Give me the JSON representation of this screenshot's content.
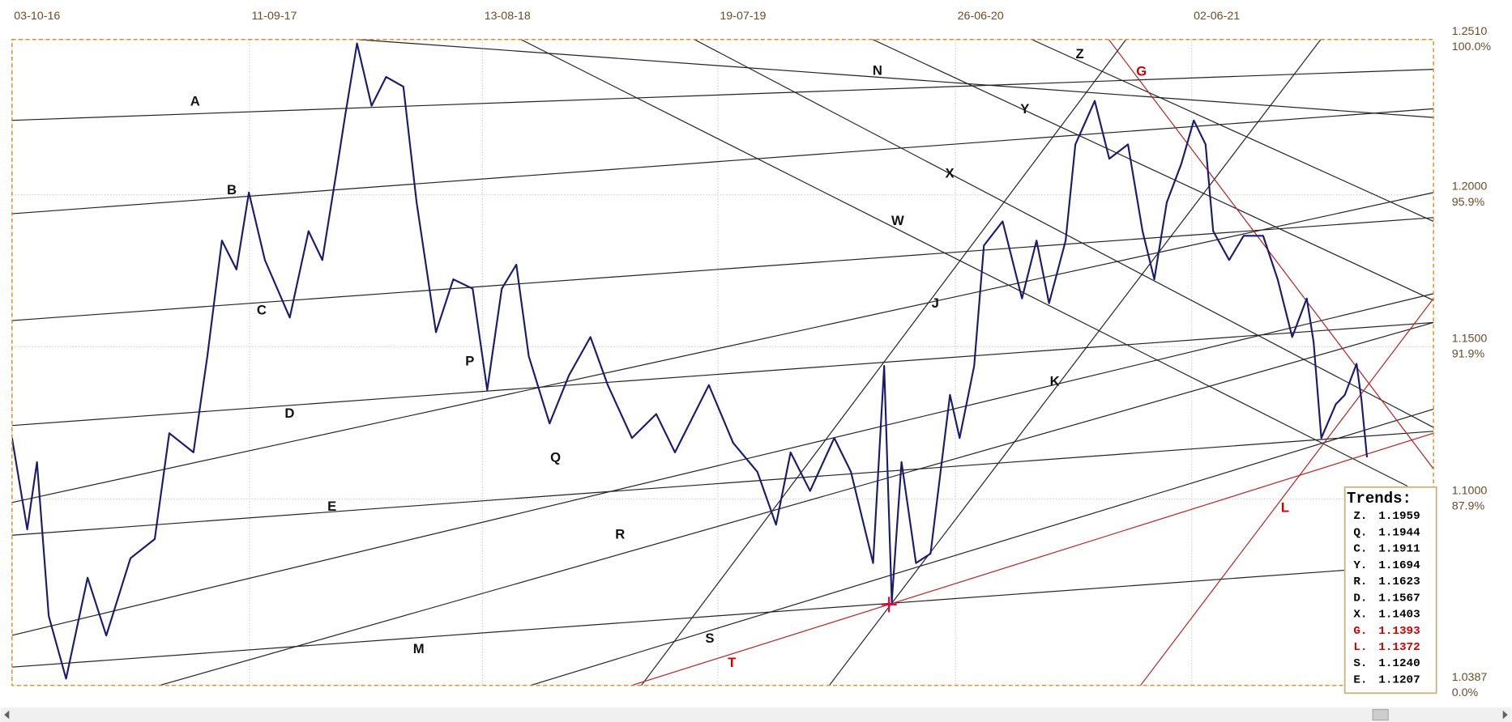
{
  "chart_data": {
    "type": "line",
    "color": "#1a1a6e",
    "grid": true,
    "xlim": [
      "03-10-16",
      "17-05-22"
    ],
    "xticks": [
      "03-10-16",
      "11-09-17",
      "13-08-18",
      "19-07-19",
      "26-06-20",
      "02-06-21"
    ],
    "ylim": [
      1.0387,
      1.251
    ],
    "yticks": [
      {
        "value": 1.251,
        "label": "1.2510"
      },
      {
        "value": 1.2,
        "label": "1.2000"
      },
      {
        "value": 1.15,
        "label": "1.1500"
      },
      {
        "value": 1.1,
        "label": "1.1000"
      },
      {
        "value": 1.0387,
        "label": "1.0387"
      }
    ],
    "ytick_percent_labels": [
      "100.0%",
      "95.9%",
      "91.9%",
      "87.9%",
      "0.0%"
    ],
    "x": [
      "03-10-16",
      "25-10-16",
      "08-11-16",
      "25-11-16",
      "20-12-16",
      "20-01-17",
      "16-02-17",
      "23-03-17",
      "27-04-17",
      "18-05-17",
      "22-06-17",
      "12-07-17",
      "02-08-17",
      "23-08-17",
      "10-09-17",
      "03-10-17",
      "08-11-17",
      "05-12-17",
      "25-12-17",
      "14-01-18",
      "27-01-18",
      "13-02-18",
      "06-03-18",
      "27-03-18",
      "21-04-18",
      "10-05-18",
      "07-06-18",
      "02-07-18",
      "30-07-18",
      "20-08-18",
      "10-09-18",
      "01-10-18",
      "19-10-18",
      "18-11-18",
      "16-12-18",
      "16-01-19",
      "10-02-19",
      "17-03-19",
      "21-04-19",
      "18-05-19",
      "06-07-19",
      "10-08-19",
      "14-09-19",
      "11-10-19",
      "01-11-19",
      "29-11-19",
      "03-01-20",
      "27-01-20",
      "28-02-20",
      "15-03-20",
      "26-03-20",
      "09-04-20",
      "30-04-20",
      "21-05-20",
      "18-06-20",
      "02-07-20",
      "23-07-20",
      "06-08-20",
      "02-09-20",
      "30-09-20",
      "21-10-20",
      "08-11-20",
      "02-12-20",
      "16-12-20",
      "13-01-21",
      "03-02-21",
      "02-03-21",
      "23-03-21",
      "09-04-21",
      "27-04-21",
      "18-05-21",
      "05-06-21",
      "22-06-21",
      "03-07-21",
      "26-07-21",
      "16-08-21",
      "13-09-21",
      "04-10-21",
      "25-10-21",
      "15-11-21",
      "25-11-21",
      "06-12-21",
      "27-12-21",
      "09-01-22",
      "26-01-22",
      "02-02-22",
      "10-02-22"
    ],
    "values": [
      1.12,
      1.09,
      1.1121,
      1.0615,
      1.0409,
      1.0741,
      1.0551,
      1.0805,
      1.0868,
      1.1216,
      1.1153,
      1.1469,
      1.1849,
      1.1754,
      1.2007,
      1.1785,
      1.1596,
      1.188,
      1.1785,
      1.207,
      1.226,
      1.2497,
      1.2292,
      1.2387,
      1.2355,
      1.1975,
      1.1548,
      1.1722,
      1.1691,
      1.1358,
      1.1691,
      1.177,
      1.1469,
      1.1248,
      1.1406,
      1.1532,
      1.1374,
      1.12,
      1.1279,
      1.1153,
      1.1374,
      1.1184,
      1.1089,
      1.0915,
      1.1153,
      1.1026,
      1.12,
      1.1089,
      1.0789,
      1.1437,
      1.0662,
      1.1121,
      1.0789,
      1.082,
      1.1342,
      1.12,
      1.1437,
      1.1833,
      1.1912,
      1.1659,
      1.1849,
      1.1643,
      1.1849,
      1.2165,
      1.2308,
      1.2118,
      1.2165,
      1.188,
      1.1722,
      1.1975,
      1.2102,
      1.2244,
      1.2165,
      1.188,
      1.1785,
      1.1865,
      1.1865,
      1.1722,
      1.1532,
      1.1659,
      1.1516,
      1.12,
      1.1311,
      1.1342,
      1.1444,
      1.1327,
      1.1137
    ],
    "annotations": [
      {
        "text": "A"
      },
      {
        "text": "B"
      },
      {
        "text": "C"
      },
      {
        "text": "D"
      },
      {
        "text": "E"
      },
      {
        "text": "M"
      },
      {
        "text": "N"
      },
      {
        "text": "Z"
      },
      {
        "text": "G",
        "color": "#cc0000"
      },
      {
        "text": "Y"
      },
      {
        "text": "X"
      },
      {
        "text": "W"
      },
      {
        "text": "J"
      },
      {
        "text": "K"
      },
      {
        "text": "P"
      },
      {
        "text": "Q"
      },
      {
        "text": "R"
      },
      {
        "text": "S"
      },
      {
        "text": "T",
        "color": "#cc0000"
      },
      {
        "text": "L",
        "color": "#cc0000"
      }
    ]
  },
  "trends": {
    "title": "Trends:",
    "rows": [
      {
        "name": "Z.",
        "value": "1.1959"
      },
      {
        "name": "Q.",
        "value": "1.1944"
      },
      {
        "name": "C.",
        "value": "1.1911"
      },
      {
        "name": "Y.",
        "value": "1.1694"
      },
      {
        "name": "R.",
        "value": "1.1623"
      },
      {
        "name": "D.",
        "value": "1.1567"
      },
      {
        "name": "X.",
        "value": "1.1403"
      },
      {
        "name": "G.",
        "value": "1.1393",
        "color": "#cc0000"
      },
      {
        "name": "L.",
        "value": "1.1372",
        "color": "#cc0000"
      },
      {
        "name": "S.",
        "value": "1.1240"
      },
      {
        "name": "E.",
        "value": "1.1207"
      }
    ]
  }
}
